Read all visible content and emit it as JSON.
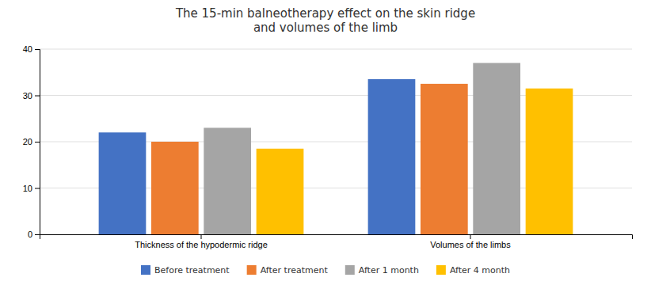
{
  "chart_data": {
    "type": "bar",
    "title": "The 15-min balneotherapy effect on the skin ridge\nand volumes of the limb",
    "categories": [
      "Thickness of the hypodermic ridge",
      "Volumes of the limbs"
    ],
    "series": [
      {
        "name": "Before treatment",
        "color": "#4472C4",
        "values": [
          22,
          33.5
        ]
      },
      {
        "name": "After treatment",
        "color": "#ED7D31",
        "values": [
          20,
          32.5
        ]
      },
      {
        "name": "After 1 month",
        "color": "#A5A5A5",
        "values": [
          23,
          37
        ]
      },
      {
        "name": "After 4 month",
        "color": "#FFC000",
        "values": [
          18.5,
          31.5
        ]
      }
    ],
    "ylim": [
      0,
      40
    ],
    "yticks": [
      0,
      10,
      20,
      30,
      40
    ],
    "grid": true,
    "legend": "bottom"
  }
}
